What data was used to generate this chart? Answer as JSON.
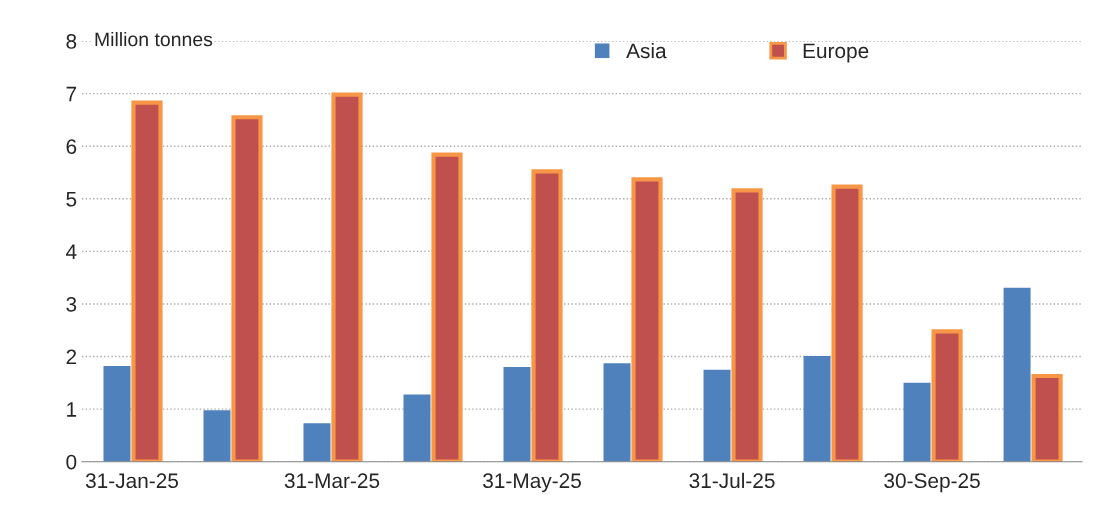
{
  "chart_data": {
    "type": "bar",
    "ylabel": "Million tonnes",
    "categories": [
      "31-Jan-25",
      null,
      "31-Mar-25",
      null,
      "31-May-25",
      null,
      "31-Jul-25",
      null,
      "30-Sep-25",
      null
    ],
    "series": [
      {
        "name": "Asia",
        "color": "#4f81bd",
        "values": [
          1.82,
          0.98,
          0.73,
          1.28,
          1.8,
          1.87,
          1.75,
          2.01,
          1.5,
          3.31
        ]
      },
      {
        "name": "Europe",
        "color": "#c0504d",
        "values": [
          6.83,
          6.55,
          6.98,
          5.84,
          5.52,
          5.37,
          5.16,
          5.23,
          2.48,
          1.63
        ]
      }
    ],
    "ylim": [
      0,
      8
    ],
    "yticks": [
      0,
      1,
      2,
      3,
      4,
      5,
      6,
      7,
      8
    ],
    "grid": "y",
    "legend": "top"
  }
}
